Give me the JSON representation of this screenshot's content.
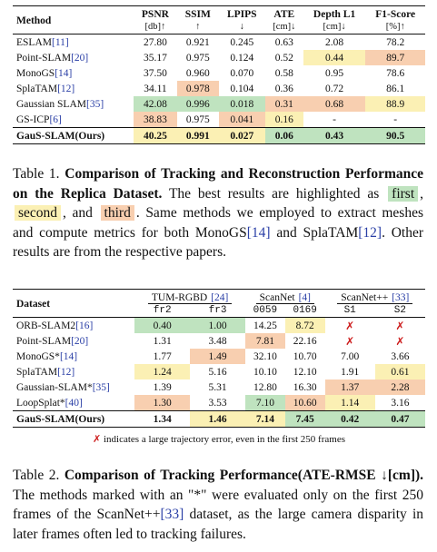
{
  "table1": {
    "headers": {
      "method": "Method",
      "psnr": "PSNR",
      "psnr_unit": "[db]↑",
      "ssim": "SSIM",
      "ssim_unit": "↑",
      "lpips": "LPIPS",
      "lpips_unit": "↓",
      "ate": "ATE",
      "ate_unit": "[cm]↓",
      "depth": "Depth L1",
      "depth_unit": "[cm]↓",
      "f1": "F1-Score",
      "f1_unit": "[%]↑"
    },
    "rows": [
      {
        "name": "ESLAM",
        "cite": "[11]",
        "psnr": "27.80",
        "ssim": "0.921",
        "lpips": "0.245",
        "ate": "0.63",
        "depth": "2.08",
        "f1": "78.2"
      },
      {
        "name": "Point-SLAM",
        "cite": "[20]",
        "psnr": "35.17",
        "ssim": "0.975",
        "lpips": "0.124",
        "ate": "0.52",
        "depth": "0.44",
        "f1": "89.7"
      },
      {
        "name": "MonoGS",
        "cite": "[14]",
        "psnr": "37.50",
        "ssim": "0.960",
        "lpips": "0.070",
        "ate": "0.58",
        "depth": "0.95",
        "f1": "78.6"
      },
      {
        "name": "SplaTAM",
        "cite": "[12]",
        "psnr": "34.11",
        "ssim": "0.978",
        "lpips": "0.104",
        "ate": "0.36",
        "depth": "0.72",
        "f1": "86.1"
      },
      {
        "name": "Gaussian SLAM",
        "cite": "[35]",
        "psnr": "42.08",
        "ssim": "0.996",
        "lpips": "0.018",
        "ate": "0.31",
        "depth": "0.68",
        "f1": "88.9"
      },
      {
        "name": "GS-ICP",
        "cite": "[6]",
        "psnr": "38.83",
        "ssim": "0.975",
        "lpips": "0.041",
        "ate": "0.16",
        "depth": "-",
        "f1": "-"
      },
      {
        "name": "GauS-SLAM(Ours)",
        "cite": "",
        "psnr": "40.25",
        "ssim": "0.991",
        "lpips": "0.027",
        "ate": "0.06",
        "depth": "0.43",
        "f1": "90.5"
      }
    ],
    "highlight_colors": {
      "first": "#bfe3bf",
      "second": "#fbf0b4",
      "third": "#f8cfb0"
    }
  },
  "caption1": {
    "label": "Table 1.",
    "bold": "Comparison of Tracking and Reconstruction Performance on the Replica Dataset.",
    "t1": "The best results are highlighted as",
    "first": "first",
    "comma": ",",
    "second": "second",
    "and": ", and",
    "third": "third",
    "t2": ". Same methods we employed to extract meshes and compute metrics for both MonoGS",
    "cite_a": "[14]",
    "t3": "and SplaTAM",
    "cite_b": "[12]",
    "t4": ". Other results are from the respective papers."
  },
  "table2": {
    "headers": {
      "dataset": "Dataset",
      "g1": "TUM-RGBD",
      "g1_cite": "[24]",
      "g2": "ScanNet",
      "g2_cite": "[4]",
      "g3": "ScanNet++",
      "g3_cite": "[33]",
      "s1": "fr2",
      "s2": "fr3",
      "s3": "0059",
      "s4": "0169",
      "s5": "S1",
      "s6": "S2"
    },
    "rows": [
      {
        "name": "ORB-SLAM2",
        "cite": "[16]",
        "v": [
          "0.40",
          "1.00",
          "14.25",
          "8.72",
          "✗",
          "✗"
        ]
      },
      {
        "name": "Point-SLAM",
        "cite": "[20]",
        "v": [
          "1.31",
          "3.48",
          "7.81",
          "22.16",
          "✗",
          "✗"
        ]
      },
      {
        "name": "MonoGS*",
        "cite": "[14]",
        "v": [
          "1.77",
          "1.49",
          "32.10",
          "10.70",
          "7.00",
          "3.66"
        ]
      },
      {
        "name": "SplaTAM",
        "cite": "[12]",
        "v": [
          "1.24",
          "5.16",
          "10.10",
          "12.10",
          "1.91",
          "0.61"
        ]
      },
      {
        "name": "Gaussian-SLAM*",
        "cite": "[35]",
        "v": [
          "1.39",
          "5.31",
          "12.80",
          "16.30",
          "1.37",
          "2.28"
        ]
      },
      {
        "name": "LoopSplat*",
        "cite": "[40]",
        "v": [
          "1.30",
          "3.53",
          "7.10",
          "10.60",
          "1.14",
          "3.16"
        ]
      },
      {
        "name": "GauS-SLAM(Ours)",
        "cite": "",
        "v": [
          "1.34",
          "1.46",
          "7.14",
          "7.45",
          "0.42",
          "0.47"
        ]
      }
    ],
    "note_mark": "✗",
    "note_text": "indicates a large trajectory error, even in the first 250 frames"
  },
  "caption2": {
    "label": "Table 2.",
    "bold": "Comparison of Tracking Performance(ATE-RMSE ↓[cm]).",
    "t1": "The methods marked with an \"*\" were evaluated only on the first 250 frames of the ScanNet++",
    "cite": "[33]",
    "t2": "dataset, as the large camera disparity in later frames often led to tracking failures."
  }
}
